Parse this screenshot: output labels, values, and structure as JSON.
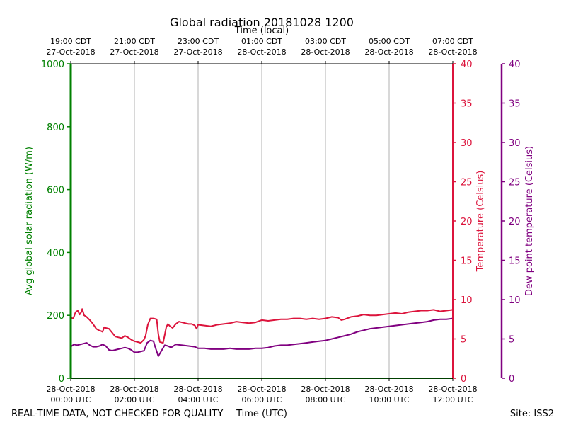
{
  "chart_data": {
    "type": "line",
    "title": "Global radiation 20181028 1200",
    "top_axis_title": "Time (local)",
    "xlabel": "Time (UTC)",
    "footer_left": "REAL-TIME DATA, NOT CHECKED FOR QUALITY",
    "footer_right": "Site: ISS2",
    "x_range_hours": [
      0,
      12
    ],
    "top_ticks": [
      {
        "hour": 0,
        "line1": "19:00 CDT",
        "line2": "27-Oct-2018"
      },
      {
        "hour": 2,
        "line1": "21:00 CDT",
        "line2": "27-Oct-2018"
      },
      {
        "hour": 4,
        "line1": "23:00 CDT",
        "line2": "27-Oct-2018"
      },
      {
        "hour": 6,
        "line1": "01:00 CDT",
        "line2": "28-Oct-2018"
      },
      {
        "hour": 8,
        "line1": "03:00 CDT",
        "line2": "28-Oct-2018"
      },
      {
        "hour": 10,
        "line1": "05:00 CDT",
        "line2": "28-Oct-2018"
      },
      {
        "hour": 12,
        "line1": "07:00 CDT",
        "line2": "28-Oct-2018"
      }
    ],
    "bottom_ticks": [
      {
        "hour": 0,
        "line1": "28-Oct-2018",
        "line2": "00:00 UTC"
      },
      {
        "hour": 2,
        "line1": "28-Oct-2018",
        "line2": "02:00 UTC"
      },
      {
        "hour": 4,
        "line1": "28-Oct-2018",
        "line2": "04:00 UTC"
      },
      {
        "hour": 6,
        "line1": "28-Oct-2018",
        "line2": "06:00 UTC"
      },
      {
        "hour": 8,
        "line1": "28-Oct-2018",
        "line2": "08:00 UTC"
      },
      {
        "hour": 10,
        "line1": "28-Oct-2018",
        "line2": "10:00 UTC"
      },
      {
        "hour": 12,
        "line1": "28-Oct-2018",
        "line2": "12:00 UTC"
      }
    ],
    "axes": {
      "radiation": {
        "label": "Avg global solar radiation (W/m)",
        "ylim": [
          0,
          1000
        ],
        "ticks": [
          0,
          200,
          400,
          600,
          800,
          1000
        ],
        "color": "#008000"
      },
      "temperature": {
        "label": "Temperature (Celsius)",
        "ylim": [
          0,
          40
        ],
        "ticks": [
          0,
          5,
          10,
          15,
          20,
          25,
          30,
          35,
          40
        ],
        "color": "#dc143c"
      },
      "dewpoint": {
        "label": "Dew point temperature (Celsius)",
        "ylim": [
          0,
          40
        ],
        "ticks": [
          0,
          5,
          10,
          15,
          20,
          25,
          30,
          35,
          40
        ],
        "color": "#800080"
      }
    },
    "series": [
      {
        "name": "Global radiation",
        "axis": "radiation",
        "color": "#008000",
        "points": [
          [
            0,
            0
          ],
          [
            12,
            0
          ]
        ]
      },
      {
        "name": "Temperature",
        "axis": "temperature",
        "color": "#dc143c",
        "points": [
          [
            0.0,
            7.7
          ],
          [
            0.08,
            7.6
          ],
          [
            0.15,
            8.4
          ],
          [
            0.22,
            8.6
          ],
          [
            0.28,
            8.1
          ],
          [
            0.33,
            8.4
          ],
          [
            0.36,
            8.8
          ],
          [
            0.42,
            8.0
          ],
          [
            0.5,
            7.8
          ],
          [
            0.6,
            7.4
          ],
          [
            0.7,
            6.9
          ],
          [
            0.8,
            6.3
          ],
          [
            0.88,
            6.1
          ],
          [
            0.95,
            6.0
          ],
          [
            1.0,
            5.9
          ],
          [
            1.05,
            6.5
          ],
          [
            1.1,
            6.4
          ],
          [
            1.2,
            6.3
          ],
          [
            1.3,
            5.8
          ],
          [
            1.4,
            5.3
          ],
          [
            1.5,
            5.2
          ],
          [
            1.6,
            5.1
          ],
          [
            1.7,
            5.4
          ],
          [
            1.8,
            5.2
          ],
          [
            1.9,
            4.9
          ],
          [
            2.0,
            4.7
          ],
          [
            2.1,
            4.6
          ],
          [
            2.2,
            4.5
          ],
          [
            2.3,
            4.9
          ],
          [
            2.35,
            5.4
          ],
          [
            2.42,
            6.8
          ],
          [
            2.5,
            7.6
          ],
          [
            2.6,
            7.6
          ],
          [
            2.7,
            7.5
          ],
          [
            2.75,
            5.6
          ],
          [
            2.8,
            4.6
          ],
          [
            2.9,
            4.5
          ],
          [
            2.95,
            5.5
          ],
          [
            3.0,
            6.5
          ],
          [
            3.05,
            6.9
          ],
          [
            3.12,
            6.6
          ],
          [
            3.2,
            6.4
          ],
          [
            3.3,
            6.9
          ],
          [
            3.4,
            7.2
          ],
          [
            3.5,
            7.1
          ],
          [
            3.6,
            7.0
          ],
          [
            3.7,
            6.9
          ],
          [
            3.8,
            6.9
          ],
          [
            3.9,
            6.7
          ],
          [
            3.95,
            6.3
          ],
          [
            4.0,
            6.8
          ],
          [
            4.2,
            6.7
          ],
          [
            4.4,
            6.6
          ],
          [
            4.6,
            6.8
          ],
          [
            4.8,
            6.9
          ],
          [
            5.0,
            7.0
          ],
          [
            5.2,
            7.2
          ],
          [
            5.4,
            7.1
          ],
          [
            5.6,
            7.0
          ],
          [
            5.8,
            7.1
          ],
          [
            6.0,
            7.4
          ],
          [
            6.2,
            7.3
          ],
          [
            6.4,
            7.4
          ],
          [
            6.6,
            7.5
          ],
          [
            6.8,
            7.5
          ],
          [
            7.0,
            7.6
          ],
          [
            7.2,
            7.6
          ],
          [
            7.4,
            7.5
          ],
          [
            7.6,
            7.6
          ],
          [
            7.8,
            7.5
          ],
          [
            8.0,
            7.6
          ],
          [
            8.2,
            7.8
          ],
          [
            8.4,
            7.7
          ],
          [
            8.5,
            7.4
          ],
          [
            8.6,
            7.5
          ],
          [
            8.8,
            7.8
          ],
          [
            9.0,
            7.9
          ],
          [
            9.2,
            8.1
          ],
          [
            9.4,
            8.0
          ],
          [
            9.6,
            8.0
          ],
          [
            9.8,
            8.1
          ],
          [
            10.0,
            8.2
          ],
          [
            10.2,
            8.3
          ],
          [
            10.4,
            8.2
          ],
          [
            10.6,
            8.4
          ],
          [
            10.8,
            8.5
          ],
          [
            11.0,
            8.6
          ],
          [
            11.2,
            8.6
          ],
          [
            11.4,
            8.7
          ],
          [
            11.6,
            8.5
          ],
          [
            11.8,
            8.6
          ],
          [
            12.0,
            8.7
          ]
        ]
      },
      {
        "name": "Dew point temperature",
        "axis": "dewpoint",
        "color": "#800080",
        "points": [
          [
            0.0,
            4.0
          ],
          [
            0.1,
            4.3
          ],
          [
            0.2,
            4.2
          ],
          [
            0.3,
            4.3
          ],
          [
            0.4,
            4.4
          ],
          [
            0.5,
            4.5
          ],
          [
            0.6,
            4.2
          ],
          [
            0.7,
            4.0
          ],
          [
            0.8,
            4.0
          ],
          [
            0.9,
            4.1
          ],
          [
            1.0,
            4.3
          ],
          [
            1.1,
            4.1
          ],
          [
            1.2,
            3.6
          ],
          [
            1.3,
            3.5
          ],
          [
            1.4,
            3.6
          ],
          [
            1.5,
            3.7
          ],
          [
            1.6,
            3.8
          ],
          [
            1.7,
            3.9
          ],
          [
            1.8,
            3.8
          ],
          [
            1.9,
            3.6
          ],
          [
            2.0,
            3.3
          ],
          [
            2.1,
            3.3
          ],
          [
            2.2,
            3.4
          ],
          [
            2.3,
            3.5
          ],
          [
            2.4,
            4.5
          ],
          [
            2.5,
            4.8
          ],
          [
            2.6,
            4.7
          ],
          [
            2.65,
            4.0
          ],
          [
            2.75,
            2.8
          ],
          [
            2.85,
            3.5
          ],
          [
            2.95,
            4.2
          ],
          [
            3.05,
            4.1
          ],
          [
            3.15,
            3.9
          ],
          [
            3.3,
            4.3
          ],
          [
            3.5,
            4.2
          ],
          [
            3.7,
            4.1
          ],
          [
            3.9,
            4.0
          ],
          [
            4.0,
            3.8
          ],
          [
            4.2,
            3.8
          ],
          [
            4.4,
            3.7
          ],
          [
            4.6,
            3.7
          ],
          [
            4.8,
            3.7
          ],
          [
            5.0,
            3.8
          ],
          [
            5.2,
            3.7
          ],
          [
            5.4,
            3.7
          ],
          [
            5.6,
            3.7
          ],
          [
            5.8,
            3.8
          ],
          [
            6.0,
            3.8
          ],
          [
            6.2,
            3.9
          ],
          [
            6.4,
            4.1
          ],
          [
            6.6,
            4.2
          ],
          [
            6.8,
            4.2
          ],
          [
            7.0,
            4.3
          ],
          [
            7.2,
            4.4
          ],
          [
            7.4,
            4.5
          ],
          [
            7.6,
            4.6
          ],
          [
            7.8,
            4.7
          ],
          [
            8.0,
            4.8
          ],
          [
            8.2,
            5.0
          ],
          [
            8.4,
            5.2
          ],
          [
            8.6,
            5.4
          ],
          [
            8.8,
            5.6
          ],
          [
            9.0,
            5.9
          ],
          [
            9.2,
            6.1
          ],
          [
            9.4,
            6.3
          ],
          [
            9.6,
            6.4
          ],
          [
            9.8,
            6.5
          ],
          [
            10.0,
            6.6
          ],
          [
            10.2,
            6.7
          ],
          [
            10.4,
            6.8
          ],
          [
            10.6,
            6.9
          ],
          [
            10.8,
            7.0
          ],
          [
            11.0,
            7.1
          ],
          [
            11.2,
            7.2
          ],
          [
            11.4,
            7.4
          ],
          [
            11.6,
            7.5
          ],
          [
            11.8,
            7.5
          ],
          [
            12.0,
            7.6
          ]
        ]
      }
    ]
  }
}
